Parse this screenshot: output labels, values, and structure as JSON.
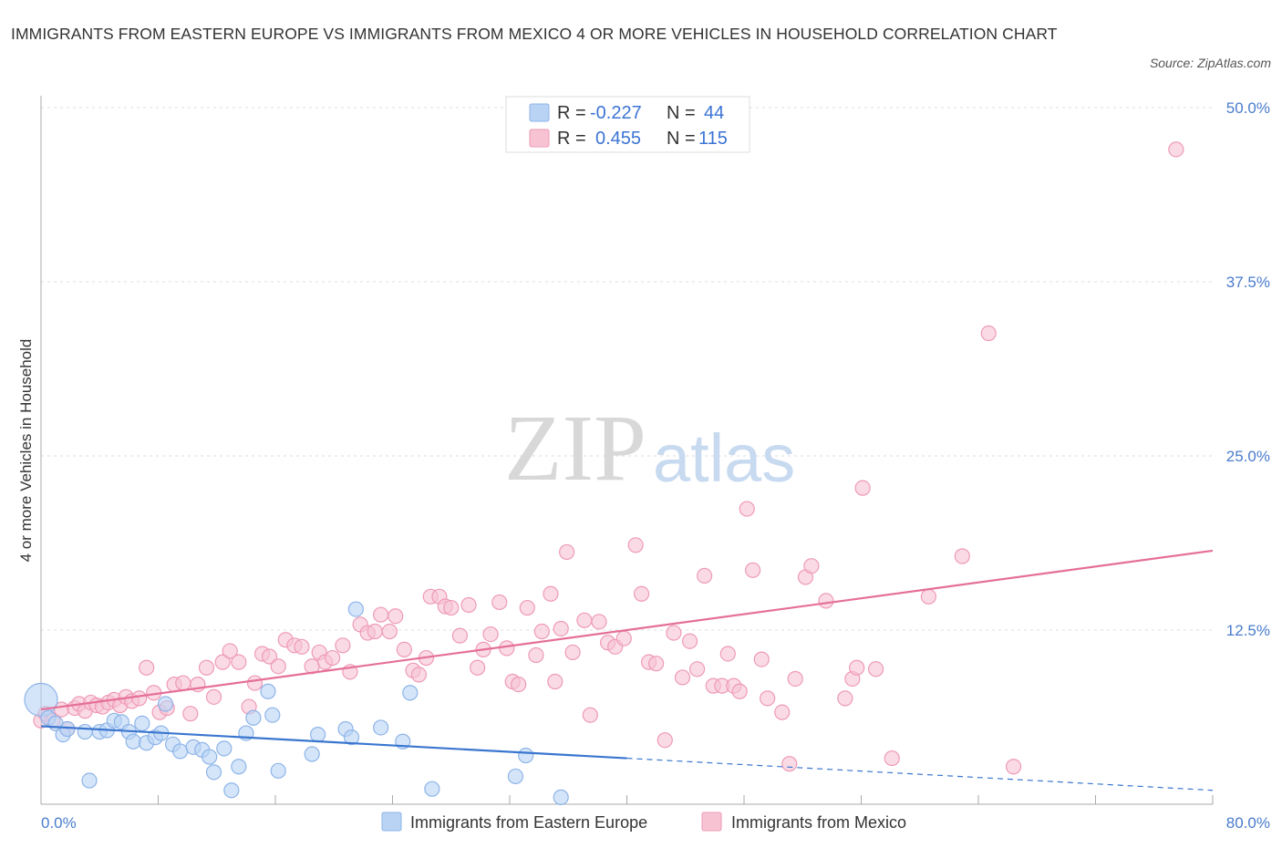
{
  "title": "IMMIGRANTS FROM EASTERN EUROPE VS IMMIGRANTS FROM MEXICO 4 OR MORE VEHICLES IN HOUSEHOLD CORRELATION CHART",
  "source": "Source: ZipAtlas.com",
  "watermark": {
    "zip": "ZIP",
    "atlas": "atlas"
  },
  "colors": {
    "blue_fill": "#b9d3f5",
    "blue_stroke": "#8db4e8",
    "blue_line": "#3a76cf",
    "pink_fill": "#f7c3d3",
    "pink_stroke": "#ee9ab5",
    "pink_line": "#e56f98",
    "tick_text": "#4a7ccc",
    "grid": "#dddddd"
  },
  "legend_top": {
    "rows": [
      {
        "r_label": "R =",
        "r_value": "-0.227",
        "n_label": "N =",
        "n_value": "44"
      },
      {
        "r_label": "R =",
        "r_value": "0.455",
        "n_label": "N =",
        "n_value": "115"
      }
    ]
  },
  "legend_bottom": {
    "items": [
      "Immigrants from Eastern Europe",
      "Immigrants from Mexico"
    ]
  },
  "chart_data": {
    "type": "scatter",
    "title": "IMMIGRANTS FROM EASTERN EUROPE VS IMMIGRANTS FROM MEXICO 4 OR MORE VEHICLES IN HOUSEHOLD CORRELATION CHART",
    "xlabel": "",
    "ylabel": "4 or more Vehicles in Household",
    "xlim": [
      0,
      80
    ],
    "ylim": [
      0,
      50
    ],
    "x_tick_labels": [
      "0.0%",
      "80.0%"
    ],
    "y_ticks": [
      12.5,
      25.0,
      37.5,
      50.0
    ],
    "y_tick_labels": [
      "12.5%",
      "25.0%",
      "37.5%",
      "50.0%"
    ],
    "grid": true,
    "legend_placement": "bottom",
    "series": [
      {
        "name": "Immigrants from Eastern Europe",
        "r": -0.227,
        "n": 44,
        "trend": {
          "x": [
            0,
            80
          ],
          "y": [
            5.6,
            1.0
          ],
          "solid_until_x": 40
        },
        "points": [
          [
            0,
            7.5
          ],
          [
            0.5,
            6.2
          ],
          [
            1,
            5.8
          ],
          [
            1.5,
            5.0
          ],
          [
            1.8,
            5.4
          ],
          [
            3,
            5.2
          ],
          [
            3.3,
            1.7
          ],
          [
            4,
            5.2
          ],
          [
            4.5,
            5.3
          ],
          [
            5,
            6.0
          ],
          [
            5.5,
            5.9
          ],
          [
            6,
            5.2
          ],
          [
            6.3,
            4.5
          ],
          [
            6.9,
            5.8
          ],
          [
            7.2,
            4.4
          ],
          [
            7.8,
            4.8
          ],
          [
            8.2,
            5.1
          ],
          [
            8.5,
            7.2
          ],
          [
            9,
            4.3
          ],
          [
            9.5,
            3.8
          ],
          [
            10.4,
            4.1
          ],
          [
            11,
            3.9
          ],
          [
            11.5,
            3.4
          ],
          [
            11.8,
            2.3
          ],
          [
            12.5,
            4.0
          ],
          [
            13,
            1.0
          ],
          [
            13.5,
            2.7
          ],
          [
            14,
            5.1
          ],
          [
            14.5,
            6.2
          ],
          [
            15.5,
            8.1
          ],
          [
            15.8,
            6.4
          ],
          [
            16.2,
            2.4
          ],
          [
            18.5,
            3.6
          ],
          [
            18.9,
            5.0
          ],
          [
            20.8,
            5.4
          ],
          [
            21.2,
            4.8
          ],
          [
            21.5,
            14.0
          ],
          [
            23.2,
            5.5
          ],
          [
            24.7,
            4.5
          ],
          [
            25.2,
            8.0
          ],
          [
            26.7,
            1.1
          ],
          [
            32.4,
            2.0
          ],
          [
            33.1,
            3.5
          ],
          [
            35.5,
            0.5
          ]
        ]
      },
      {
        "name": "Immigrants from Mexico",
        "r": 0.455,
        "n": 115,
        "trend": {
          "x": [
            0,
            80
          ],
          "y": [
            6.8,
            18.2
          ]
        },
        "points": [
          [
            0,
            6.0
          ],
          [
            0.3,
            6.5
          ],
          [
            0.8,
            6.0
          ],
          [
            1.4,
            6.8
          ],
          [
            1.8,
            5.4
          ],
          [
            2.3,
            6.9
          ],
          [
            2.6,
            7.2
          ],
          [
            3.0,
            6.7
          ],
          [
            3.4,
            7.3
          ],
          [
            3.8,
            7.1
          ],
          [
            4.2,
            7.0
          ],
          [
            4.6,
            7.3
          ],
          [
            5.0,
            7.5
          ],
          [
            5.4,
            7.1
          ],
          [
            5.8,
            7.7
          ],
          [
            6.2,
            7.4
          ],
          [
            6.7,
            7.6
          ],
          [
            7.2,
            9.8
          ],
          [
            7.7,
            8.0
          ],
          [
            8.1,
            6.6
          ],
          [
            8.6,
            6.9
          ],
          [
            9.1,
            8.6
          ],
          [
            9.7,
            8.7
          ],
          [
            10.2,
            6.5
          ],
          [
            10.7,
            8.6
          ],
          [
            11.3,
            9.8
          ],
          [
            11.8,
            7.7
          ],
          [
            12.4,
            10.2
          ],
          [
            12.9,
            11.0
          ],
          [
            13.5,
            10.2
          ],
          [
            14.2,
            7.0
          ],
          [
            14.6,
            8.7
          ],
          [
            15.1,
            10.8
          ],
          [
            15.6,
            10.6
          ],
          [
            16.2,
            9.9
          ],
          [
            16.7,
            11.8
          ],
          [
            17.3,
            11.4
          ],
          [
            17.8,
            11.3
          ],
          [
            18.5,
            9.9
          ],
          [
            19.0,
            10.9
          ],
          [
            19.4,
            10.2
          ],
          [
            19.9,
            10.5
          ],
          [
            20.6,
            11.4
          ],
          [
            21.1,
            9.5
          ],
          [
            21.8,
            12.9
          ],
          [
            22.3,
            12.3
          ],
          [
            22.8,
            12.4
          ],
          [
            23.2,
            13.6
          ],
          [
            23.8,
            12.4
          ],
          [
            24.2,
            13.5
          ],
          [
            24.8,
            11.1
          ],
          [
            25.4,
            9.6
          ],
          [
            25.8,
            9.3
          ],
          [
            26.3,
            10.5
          ],
          [
            26.6,
            14.9
          ],
          [
            27.2,
            14.9
          ],
          [
            27.6,
            14.2
          ],
          [
            28.0,
            14.1
          ],
          [
            28.6,
            12.1
          ],
          [
            29.2,
            14.3
          ],
          [
            29.8,
            9.8
          ],
          [
            30.2,
            11.1
          ],
          [
            30.7,
            12.2
          ],
          [
            31.3,
            14.5
          ],
          [
            31.8,
            11.2
          ],
          [
            32.2,
            8.8
          ],
          [
            32.6,
            8.6
          ],
          [
            33.2,
            14.1
          ],
          [
            33.8,
            10.7
          ],
          [
            34.2,
            12.4
          ],
          [
            34.8,
            15.1
          ],
          [
            35.1,
            8.8
          ],
          [
            35.5,
            12.6
          ],
          [
            35.9,
            18.1
          ],
          [
            36.3,
            10.9
          ],
          [
            37.1,
            13.2
          ],
          [
            37.5,
            6.4
          ],
          [
            38.1,
            13.1
          ],
          [
            38.7,
            11.6
          ],
          [
            39.2,
            11.3
          ],
          [
            39.8,
            11.9
          ],
          [
            40.6,
            18.6
          ],
          [
            41.0,
            15.1
          ],
          [
            41.5,
            10.2
          ],
          [
            42.0,
            10.1
          ],
          [
            42.6,
            4.6
          ],
          [
            43.2,
            12.3
          ],
          [
            43.8,
            9.1
          ],
          [
            44.3,
            11.7
          ],
          [
            44.8,
            9.7
          ],
          [
            45.3,
            16.4
          ],
          [
            45.9,
            8.5
          ],
          [
            46.5,
            8.5
          ],
          [
            46.9,
            10.8
          ],
          [
            47.3,
            8.5
          ],
          [
            47.7,
            8.1
          ],
          [
            48.2,
            21.2
          ],
          [
            48.6,
            16.8
          ],
          [
            49.2,
            10.4
          ],
          [
            49.6,
            7.6
          ],
          [
            50.6,
            6.6
          ],
          [
            51.1,
            2.9
          ],
          [
            51.5,
            9.0
          ],
          [
            52.2,
            16.3
          ],
          [
            52.6,
            17.1
          ],
          [
            53.6,
            14.6
          ],
          [
            54.9,
            7.6
          ],
          [
            55.4,
            9.0
          ],
          [
            55.7,
            9.8
          ],
          [
            56.1,
            22.7
          ],
          [
            57.0,
            9.7
          ],
          [
            58.1,
            3.3
          ],
          [
            60.6,
            14.9
          ],
          [
            62.9,
            17.8
          ],
          [
            64.7,
            33.8
          ],
          [
            66.4,
            2.7
          ],
          [
            77.5,
            47.0
          ]
        ]
      }
    ]
  }
}
